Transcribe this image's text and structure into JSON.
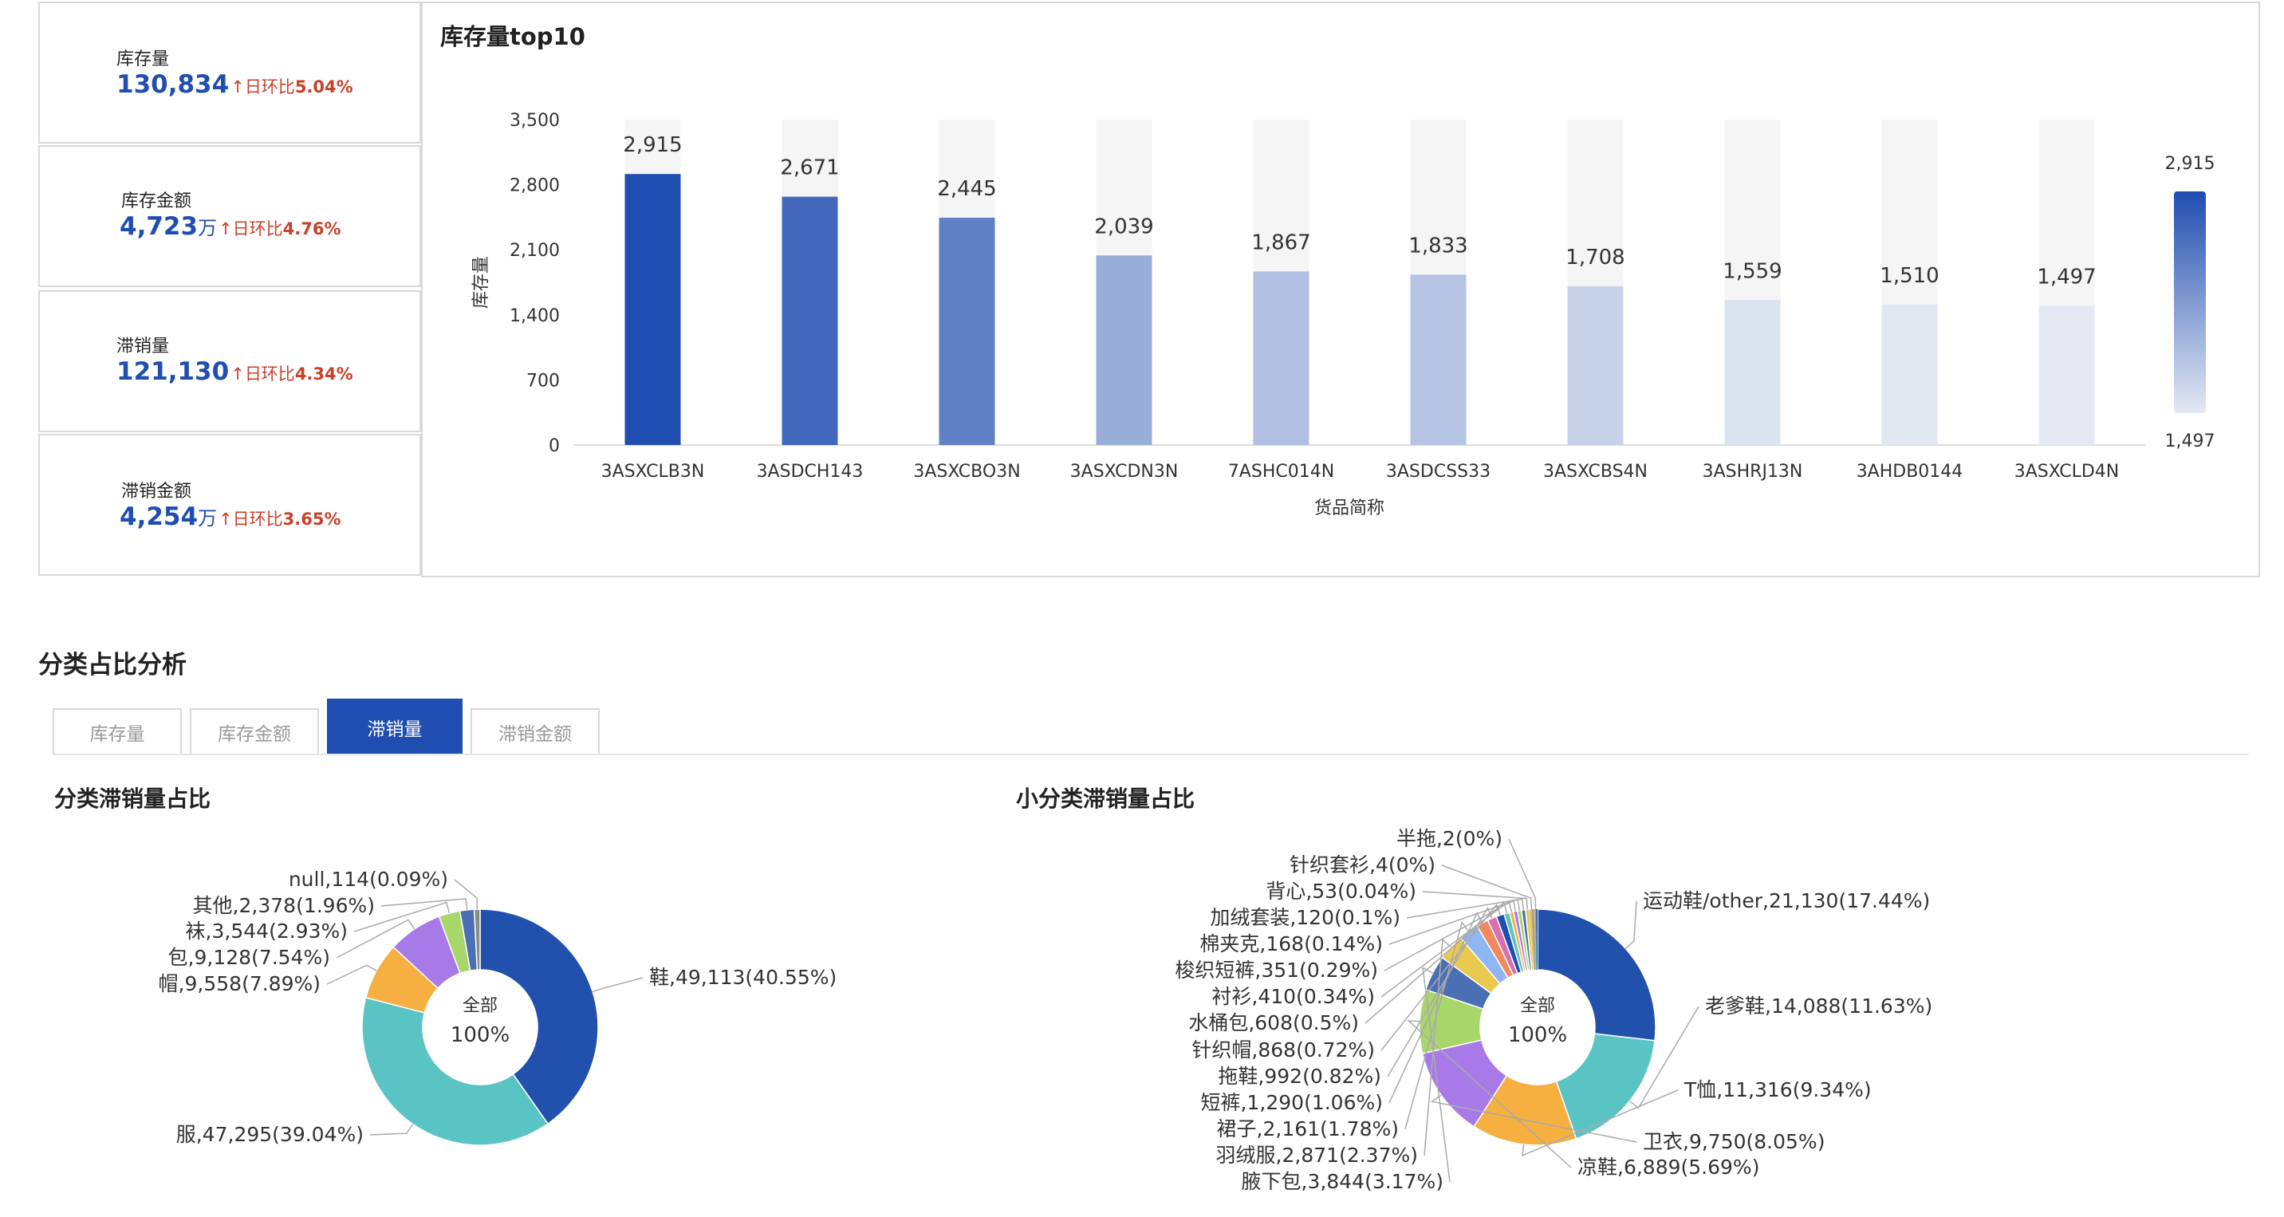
{
  "kpis": [
    {
      "label": "库存量",
      "value": "130,834",
      "unit": "",
      "arrow": "↑",
      "compare_label": "日环比",
      "compare_value": "5.04%"
    },
    {
      "label": "库存金额",
      "value": "4,723",
      "unit": "万",
      "arrow": "↑",
      "compare_label": "日环比",
      "compare_value": "4.76%"
    },
    {
      "label": "滞销量",
      "value": "121,130",
      "unit": "",
      "arrow": "↑",
      "compare_label": "日环比",
      "compare_value": "4.34%"
    },
    {
      "label": "滞销金额",
      "value": "4,254",
      "unit": "万",
      "arrow": "↑",
      "compare_label": "日环比",
      "compare_value": "3.65%"
    }
  ],
  "section": {
    "title": "分类占比分析"
  },
  "tabs": [
    {
      "label": "库存量",
      "active": false
    },
    {
      "label": "库存金额",
      "active": false
    },
    {
      "label": "滞销量",
      "active": true
    },
    {
      "label": "滞销金额",
      "active": false
    }
  ],
  "colors": {
    "primary": "#1f4db0",
    "up": "#c8402a",
    "bar_light": "#e4e9f3",
    "bar_bg": "#f5f5f5"
  },
  "chart_data": [
    {
      "type": "bar",
      "title": "库存量top10",
      "xlabel": "货品简称",
      "ylabel": "库存量",
      "categories": [
        "3ASXCLB3N",
        "3ASDCH143",
        "3ASXCBO3N",
        "3ASXCDN3N",
        "7ASHC014N",
        "3ASDCSS33",
        "3ASXCBS4N",
        "3ASHRJ13N",
        "3AHDB0144",
        "3ASXCLD4N"
      ],
      "values": [
        2915,
        2671,
        2445,
        2039,
        1867,
        1833,
        1708,
        1559,
        1510,
        1497
      ],
      "ylim": [
        0,
        3500
      ],
      "yticks": [
        0,
        700,
        1400,
        2100,
        2800,
        3500
      ],
      "visual_map": {
        "min": 1497,
        "max": 2915,
        "min_label": "1,497",
        "max_label": "2,915"
      },
      "grid": false
    },
    {
      "type": "pie",
      "title": "分类滞销量占比",
      "center_label": "全部",
      "center_value": "100%",
      "slices": [
        {
          "name": "鞋",
          "value": 49113,
          "percent": 40.55,
          "color": "#2150ad"
        },
        {
          "name": "服",
          "value": 47295,
          "percent": 39.04,
          "color": "#5ac4c4"
        },
        {
          "name": "帽",
          "value": 9558,
          "percent": 7.89,
          "color": "#f5b041"
        },
        {
          "name": "包",
          "value": 9128,
          "percent": 7.54,
          "color": "#a77ae8"
        },
        {
          "name": "袜",
          "value": 3544,
          "percent": 2.93,
          "color": "#a9d66b"
        },
        {
          "name": "其他",
          "value": 2378,
          "percent": 1.96,
          "color": "#4a6fb3"
        },
        {
          "name": "null",
          "value": 114,
          "percent": 0.09,
          "color": "#8a8a8a"
        }
      ]
    },
    {
      "type": "pie",
      "title": "小分类滞销量占比",
      "center_label": "全部",
      "center_value": "100%",
      "slices": [
        {
          "name": "运动鞋/other",
          "value": 21130,
          "percent": 17.44,
          "color": "#2150ad"
        },
        {
          "name": "老爹鞋",
          "value": 14088,
          "percent": 11.63,
          "color": "#5ac4c4"
        },
        {
          "name": "T恤",
          "value": 11316,
          "percent": 9.34,
          "color": "#f5b041"
        },
        {
          "name": "卫衣",
          "value": 9750,
          "percent": 8.05,
          "color": "#a77ae8"
        },
        {
          "name": "凉鞋",
          "value": 6889,
          "percent": 5.69,
          "color": "#a9d66b"
        },
        {
          "name": "腋下包",
          "value": 3844,
          "percent": 3.17,
          "color": "#4a6fb3"
        },
        {
          "name": "羽绒服",
          "value": 2871,
          "percent": 2.37,
          "color": "#e9c94f"
        },
        {
          "name": "裙子",
          "value": 2161,
          "percent": 1.78,
          "color": "#8db6f2"
        },
        {
          "name": "短裤",
          "value": 1290,
          "percent": 1.06,
          "color": "#f08a5d"
        },
        {
          "name": "拖鞋",
          "value": 992,
          "percent": 0.82,
          "color": "#d86fae"
        },
        {
          "name": "针织帽",
          "value": 868,
          "percent": 0.72,
          "color": "#1f4db0"
        },
        {
          "name": "水桶包",
          "value": 608,
          "percent": 0.5,
          "color": "#5ac4c4"
        },
        {
          "name": "衬衫",
          "value": 410,
          "percent": 0.34,
          "color": "#f5b041"
        },
        {
          "name": "梭织短裤",
          "value": 351,
          "percent": 0.29,
          "color": "#a77ae8"
        },
        {
          "name": "棉夹克",
          "value": 168,
          "percent": 0.14,
          "color": "#a9d66b"
        },
        {
          "name": "加绒套装",
          "value": 120,
          "percent": 0.1,
          "color": "#4a6fb3"
        },
        {
          "name": "背心",
          "value": 53,
          "percent": 0.04,
          "color": "#e9c94f"
        },
        {
          "name": "针织套衫",
          "value": 4,
          "percent": 0,
          "color": "#8db6f2"
        },
        {
          "name": "半拖",
          "value": 2,
          "percent": 0,
          "color": "#f08a5d"
        }
      ],
      "extra_small_slices": 6
    }
  ]
}
